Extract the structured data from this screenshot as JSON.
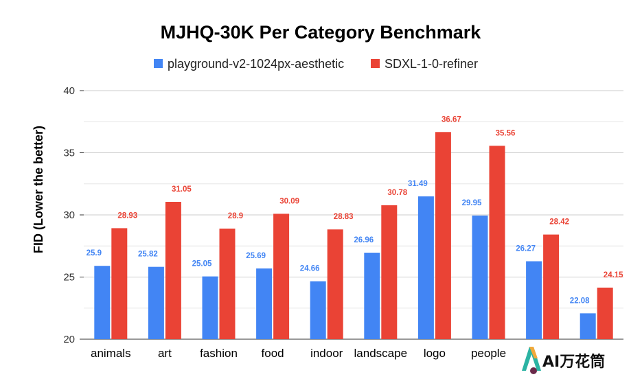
{
  "chart_data": {
    "type": "bar",
    "title": "MJHQ-30K Per Category Benchmark",
    "ylabel": "FID (Lower the better)",
    "xlabel": "",
    "ylim": [
      20,
      40
    ],
    "yticks": [
      20,
      25,
      30,
      35,
      40
    ],
    "grid": true,
    "legend_position": "top",
    "categories": [
      "animals",
      "art",
      "fashion",
      "food",
      "indoor",
      "landscape",
      "logo",
      "people",
      "",
      ""
    ],
    "series": [
      {
        "name": "playground-v2-1024px-aesthetic",
        "color": "#4285F4",
        "values": [
          25.9,
          25.82,
          25.05,
          25.69,
          24.66,
          26.96,
          31.49,
          29.95,
          26.27,
          22.08
        ],
        "labels": [
          "25.9",
          "25.82",
          "25.05",
          "25.69",
          "24.66",
          "26.96",
          "31.49",
          "29.95",
          "26.27",
          "22.08"
        ]
      },
      {
        "name": "SDXL-1-0-refiner",
        "color": "#EA4335",
        "values": [
          28.93,
          31.05,
          28.9,
          30.09,
          28.83,
          30.78,
          36.67,
          35.56,
          28.42,
          24.15
        ],
        "labels": [
          "28.93",
          "31.05",
          "28.9",
          "30.09",
          "28.83",
          "30.78",
          "36.67",
          "35.56",
          "28.42",
          "24.15"
        ]
      }
    ]
  },
  "watermark": {
    "text": "AI万花筒"
  }
}
